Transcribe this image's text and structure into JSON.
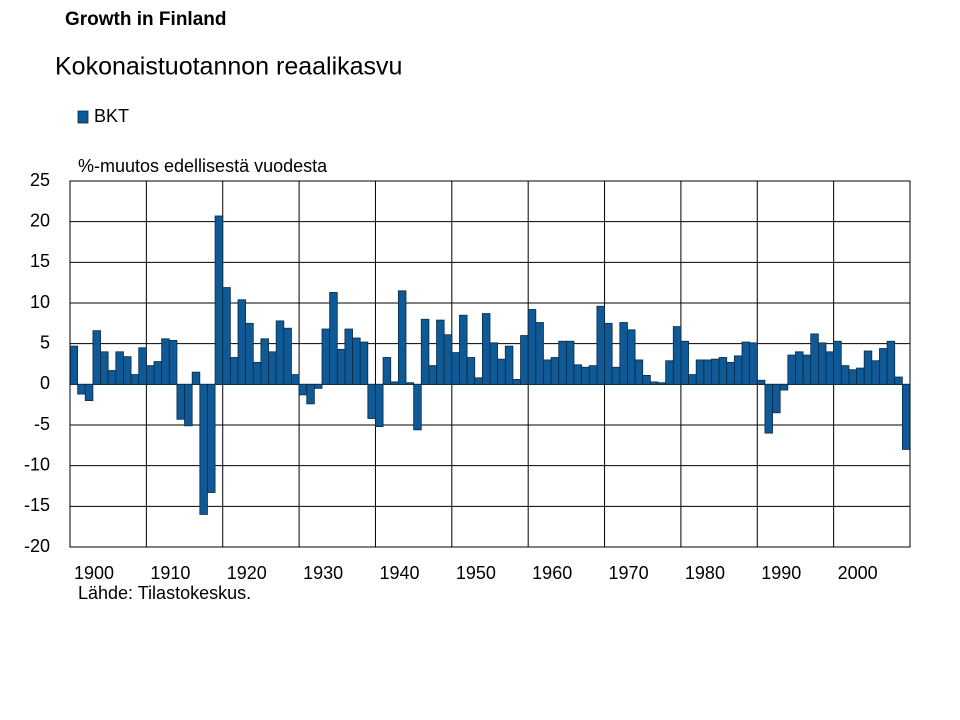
{
  "header": {
    "title": "Growth in Finland"
  },
  "chart_data": {
    "type": "bar",
    "title": "Kokonaistuotannon reaalikasvu",
    "ylabel": "%-muutos edellisestä vuodesta",
    "source": "Lähde: Tilastokeskus.",
    "legend": "top-left",
    "grid": true,
    "xlim": [
      1900,
      2010
    ],
    "xticks": [
      1900,
      1910,
      1920,
      1930,
      1940,
      1950,
      1960,
      1970,
      1980,
      1990,
      2000
    ],
    "ylim": [
      -20,
      25
    ],
    "yticks": [
      -20,
      -15,
      -10,
      -5,
      0,
      5,
      10,
      15,
      20,
      25
    ],
    "x": [
      1900,
      1901,
      1902,
      1903,
      1904,
      1905,
      1906,
      1907,
      1908,
      1909,
      1910,
      1911,
      1912,
      1913,
      1914,
      1915,
      1916,
      1917,
      1918,
      1919,
      1920,
      1921,
      1922,
      1923,
      1924,
      1925,
      1926,
      1927,
      1928,
      1929,
      1930,
      1931,
      1932,
      1933,
      1934,
      1935,
      1936,
      1937,
      1938,
      1939,
      1940,
      1941,
      1942,
      1943,
      1944,
      1945,
      1946,
      1947,
      1948,
      1949,
      1950,
      1951,
      1952,
      1953,
      1954,
      1955,
      1956,
      1957,
      1958,
      1959,
      1960,
      1961,
      1962,
      1963,
      1964,
      1965,
      1966,
      1967,
      1968,
      1969,
      1970,
      1971,
      1972,
      1973,
      1974,
      1975,
      1976,
      1977,
      1978,
      1979,
      1980,
      1981,
      1982,
      1983,
      1984,
      1985,
      1986,
      1987,
      1988,
      1989,
      1990,
      1991,
      1992,
      1993,
      1994,
      1995,
      1996,
      1997,
      1998,
      1999,
      2000,
      2001,
      2002,
      2003,
      2004,
      2005,
      2006,
      2007,
      2008,
      2009
    ],
    "series": [
      {
        "name": "BKT",
        "color": "#0f5a96",
        "values": [
          4.7,
          -1.2,
          -2,
          6.6,
          4,
          1.7,
          4,
          3.4,
          1.2,
          4.5,
          2.3,
          2.8,
          5.6,
          5.4,
          -4.3,
          -5.1,
          1.5,
          -16,
          -13.3,
          20.7,
          11.9,
          3.3,
          10.4,
          7.5,
          2.7,
          5.6,
          4,
          7.8,
          6.9,
          1.2,
          -1.3,
          -2.4,
          -0.5,
          6.8,
          11.3,
          4.3,
          6.8,
          5.7,
          5.2,
          -4.2,
          -5.2,
          3.3,
          0.3,
          11.5,
          0.2,
          -5.6,
          8,
          2.3,
          7.9,
          6.1,
          3.9,
          8.5,
          3.3,
          0.8,
          8.7,
          5.1,
          3.1,
          4.7,
          0.6,
          6,
          9.2,
          7.6,
          3,
          3.3,
          5.3,
          5.3,
          2.4,
          2.1,
          2.3,
          9.6,
          7.5,
          2.1,
          7.6,
          6.7,
          3,
          1.1,
          0.3,
          0.2,
          2.9,
          7.1,
          5.3,
          1.2,
          3,
          3,
          3.1,
          3.3,
          2.7,
          3.5,
          5.2,
          5.1,
          0.5,
          -6,
          -3.5,
          -0.7,
          3.6,
          4,
          3.6,
          6.2,
          5.1,
          4,
          5.3,
          2.3,
          1.8,
          2,
          4.1,
          2.9,
          4.4,
          5.3,
          0.9,
          -8
        ]
      }
    ]
  }
}
